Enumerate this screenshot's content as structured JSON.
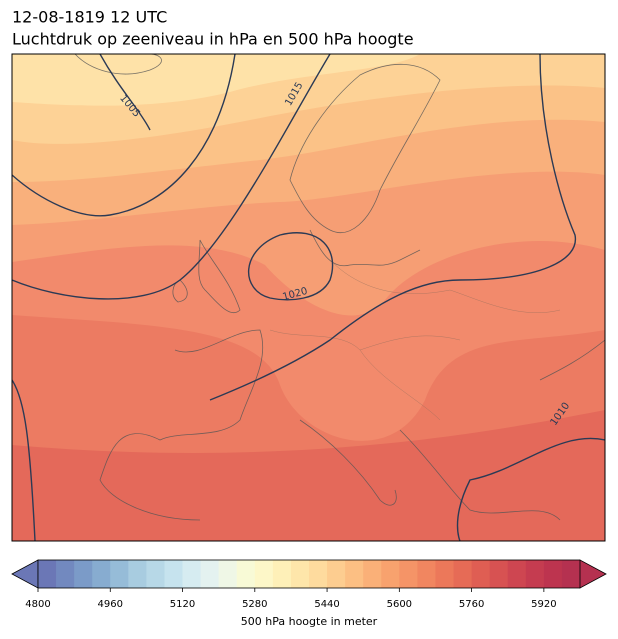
{
  "header": {
    "title": "12-08-1819 12 UTC",
    "subtitle": "Luchtdruk op zeeniveau in hPa en 500 hPa hoogte"
  },
  "map": {
    "contour_labels": [
      "1005",
      "1015",
      "1020",
      "1010"
    ]
  },
  "colorbar": {
    "range": [
      4800,
      6000
    ],
    "ticks": [
      4800,
      4960,
      5120,
      5280,
      5440,
      5600,
      5760,
      5920
    ],
    "label": "500 hPa hoogte in meter",
    "colors": [
      "#6b77b6",
      "#7289bf",
      "#7b9bc8",
      "#87acd0",
      "#96bcd8",
      "#a8cce0",
      "#b7d8e7",
      "#c6e3ee",
      "#d6ecf1",
      "#e4f2f0",
      "#eff7e6",
      "#f8fad6",
      "#fdf7c8",
      "#fef0b8",
      "#fee6aa",
      "#fedb9e",
      "#fdcd90",
      "#fcbf83",
      "#fab078",
      "#f8a26e",
      "#f59467",
      "#f18660",
      "#ec785a",
      "#e66b56",
      "#df5e53",
      "#d75252",
      "#ce4651",
      "#c53c50",
      "#bd344f",
      "#b53150"
    ]
  }
}
